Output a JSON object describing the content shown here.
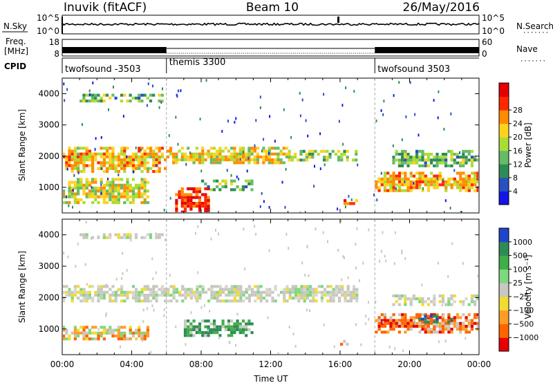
{
  "header": {
    "station": "Inuvik (fitACF)",
    "beam": "Beam 10",
    "date": "26/May/2016"
  },
  "side_labels": {
    "nsky": "N.Sky",
    "freq_line1": "Freq.",
    "freq_line2": "[MHz]",
    "cpid": "CPID",
    "nsearch": "N.Search",
    "nave": "Nave",
    "dots": "·······"
  },
  "chart_data": [
    {
      "type": "line",
      "name": "noise",
      "left_ticks": [
        "10^5",
        "10^0"
      ],
      "right_ticks": [
        "10^5",
        "10^0"
      ],
      "x_range_hours": [
        0,
        24
      ],
      "sky_level": 0.55,
      "search_level": 0.5
    },
    {
      "type": "line",
      "name": "frequency / nave",
      "left_ticks": [
        "18",
        "8"
      ],
      "right_ticks": [
        "60",
        "0"
      ],
      "x_range_hours": [
        0,
        24
      ],
      "segments": [
        {
          "x0": 0.0,
          "x1": 6.0,
          "pattern": "dense"
        },
        {
          "x0": 6.0,
          "x1": 18.0,
          "pattern": "sparse"
        },
        {
          "x0": 18.0,
          "x1": 24.0,
          "pattern": "dense"
        }
      ]
    },
    {
      "type": "table",
      "name": "cpid",
      "segments": [
        {
          "x0": 0.0,
          "x1": 6.0,
          "label": "twofsound -3503"
        },
        {
          "x0": 6.0,
          "x1": 18.0,
          "label": "themis 3300"
        },
        {
          "x0": 18.0,
          "x1": 24.0,
          "label": "twofsound 3503"
        }
      ]
    },
    {
      "type": "heatmap",
      "name": "power",
      "ylabel": "Slant Range [km]",
      "x_range_hours": [
        0,
        24
      ],
      "y_range_km": [
        180,
        4500
      ],
      "yticks": [
        1000,
        2000,
        3000,
        4000
      ],
      "colorbar": {
        "label": "Power [dB]",
        "ticks": [
          "4",
          "8",
          "12",
          "16",
          "20",
          "24",
          "28"
        ],
        "range": [
          0,
          30
        ],
        "colors": [
          "#1414e6",
          "#2850c0",
          "#2e8b57",
          "#66bb66",
          "#aadd33",
          "#ffd21e",
          "#ff8c00",
          "#ff2800",
          "#e60000"
        ]
      },
      "bands": [
        {
          "x0": 0.0,
          "x1": 6.0,
          "y0": 1500,
          "y1": 2300,
          "level": 19
        },
        {
          "x0": 0.0,
          "x1": 5.0,
          "y0": 500,
          "y1": 1300,
          "level": 16
        },
        {
          "x0": 1.0,
          "x1": 5.8,
          "y0": 3800,
          "y1": 4000,
          "level": 12
        },
        {
          "x0": 6.0,
          "x1": 13.0,
          "y0": 1750,
          "y1": 2300,
          "level": 17
        },
        {
          "x0": 6.5,
          "x1": 8.5,
          "y0": 180,
          "y1": 1000,
          "level": 26
        },
        {
          "x0": 8.0,
          "x1": 11.0,
          "y0": 950,
          "y1": 1250,
          "level": 12
        },
        {
          "x0": 13.0,
          "x1": 17.0,
          "y0": 1900,
          "y1": 2200,
          "level": 14
        },
        {
          "x0": 16.2,
          "x1": 17.0,
          "y0": 500,
          "y1": 620,
          "level": 22
        },
        {
          "x0": 18.0,
          "x1": 24.0,
          "y0": 900,
          "y1": 1500,
          "level": 20
        },
        {
          "x0": 19.0,
          "x1": 24.0,
          "y0": 1700,
          "y1": 2200,
          "level": 12
        }
      ]
    },
    {
      "type": "heatmap",
      "name": "velocity",
      "ylabel": "Slant Range [km]",
      "xlabel": "Time UT",
      "x_range_hours": [
        0,
        24
      ],
      "xticks": [
        "00:00",
        "04:00",
        "08:00",
        "12:00",
        "16:00",
        "20:00",
        "00:00"
      ],
      "y_range_km": [
        180,
        4500
      ],
      "yticks": [
        1000,
        2000,
        3000,
        4000
      ],
      "colorbar": {
        "label": "Velocity [m s⁻¹]",
        "ticks": [
          "1000",
          "500",
          "100",
          "25",
          "−25",
          "−100",
          "−500",
          "−1000"
        ],
        "colors": [
          "#1e46c8",
          "#2e8b57",
          "#3fae46",
          "#7ed87e",
          "#c8c8c0",
          "#f0dc32",
          "#ff9c28",
          "#ff6400",
          "#e60000"
        ]
      },
      "bands": [
        {
          "x0": 0.0,
          "x1": 17.0,
          "y0": 1900,
          "y1": 2400,
          "cls": "gray"
        },
        {
          "x0": 1.0,
          "x1": 5.8,
          "y0": 3900,
          "y1": 4050,
          "cls": "gray"
        },
        {
          "x0": 0.0,
          "x1": 5.0,
          "y0": 700,
          "y1": 1100,
          "cls": "orange"
        },
        {
          "x0": 7.0,
          "x1": 11.0,
          "y0": 800,
          "y1": 1300,
          "cls": "green"
        },
        {
          "x0": 16.0,
          "x1": 17.0,
          "y0": 500,
          "y1": 650,
          "cls": "orange"
        },
        {
          "x0": 18.0,
          "x1": 24.0,
          "y0": 900,
          "y1": 1500,
          "cls": "red"
        },
        {
          "x0": 20.5,
          "x1": 22.5,
          "y0": 1200,
          "y1": 1450,
          "cls": "blue"
        },
        {
          "x0": 19.0,
          "x1": 24.0,
          "y0": 1800,
          "y1": 2100,
          "cls": "gray"
        }
      ]
    }
  ]
}
